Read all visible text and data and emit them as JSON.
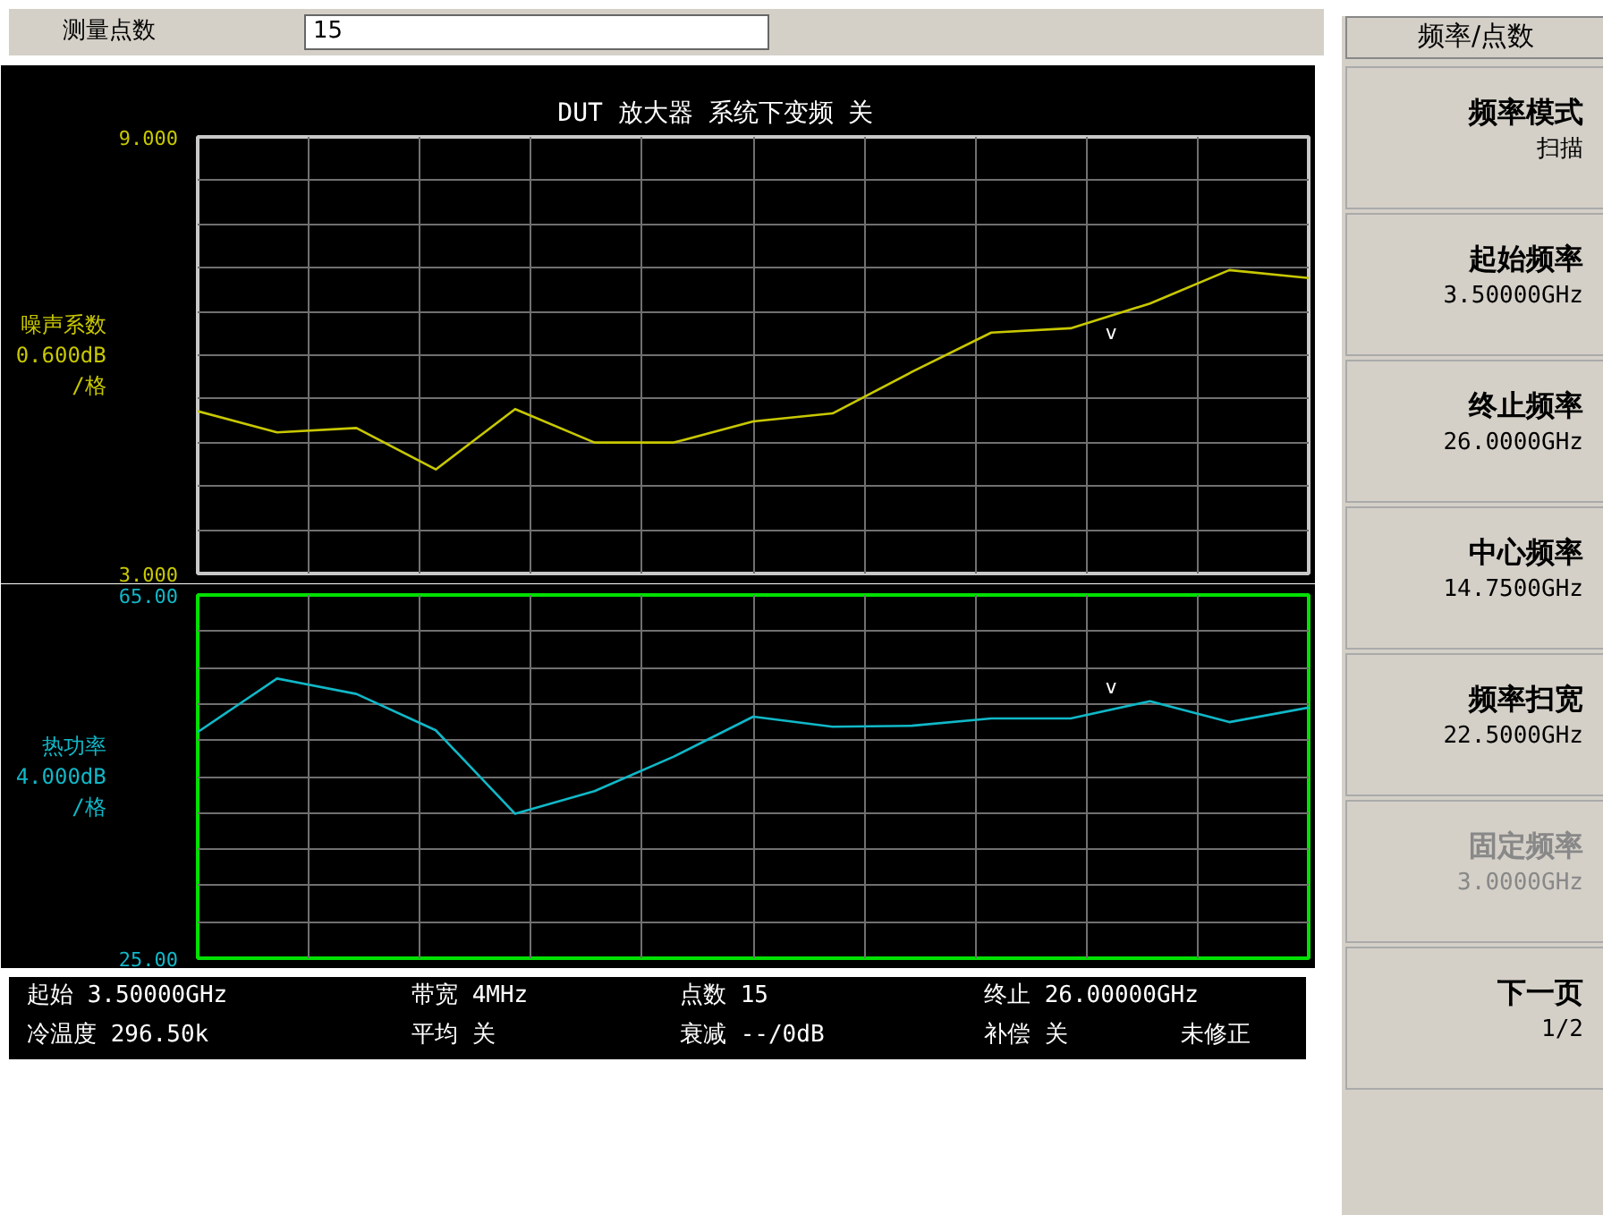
{
  "chart_data": [
    {
      "type": "line",
      "title": "DUT  放大器    系统下变频  关",
      "ylabel": "噪声系数\n0.600dB\n/格",
      "categories": [
        null,
        null,
        null,
        null,
        null,
        null,
        null,
        null,
        null,
        null,
        null,
        null,
        null,
        null,
        null
      ],
      "series": [
        {
          "color": "#c8c800",
          "values": [
            5.23,
            4.94,
            5.0,
            4.43,
            5.26,
            4.8,
            4.8,
            5.09,
            5.2,
            5.77,
            6.31,
            6.37,
            6.71,
            7.17,
            7.06
          ]
        }
      ],
      "ylim": [
        3.0,
        9.0
      ],
      "yticks": [
        {
          "value": 3.0,
          "label": "3.000"
        },
        {
          "value": 3.6,
          "label": null
        },
        {
          "value": 4.2,
          "label": null
        },
        {
          "value": 4.8,
          "label": null
        },
        {
          "value": 5.4,
          "label": null
        },
        {
          "value": 6.0,
          "label": null
        },
        {
          "value": 6.6,
          "label": null
        },
        {
          "value": 7.2,
          "label": null
        },
        {
          "value": 7.8,
          "label": null
        },
        {
          "value": 8.4,
          "label": null
        },
        {
          "value": 9.0,
          "label": "9.000"
        }
      ],
      "grid": true,
      "tick_labels": "y",
      "annotations": [
        "测量点数",
        "15",
        "v"
      ]
    },
    {
      "type": "line",
      "ylabel": "热功率\n4.000dB\n/格",
      "categories": [
        null,
        null,
        null,
        null,
        null,
        null,
        null,
        null,
        null,
        null,
        null,
        null,
        null,
        null,
        null
      ],
      "series": [
        {
          "color": "#10b8c8",
          "values": [
            49.9,
            55.8,
            54.1,
            50.1,
            40.9,
            43.4,
            47.2,
            51.6,
            50.5,
            50.6,
            51.4,
            51.4,
            53.3,
            51.0,
            52.6
          ]
        }
      ],
      "ylim": [
        25.0,
        65.0
      ],
      "yticks": [
        {
          "value": 25.0,
          "label": "25.00"
        },
        {
          "value": 29.0,
          "label": null
        },
        {
          "value": 33.0,
          "label": null
        },
        {
          "value": 37.0,
          "label": null
        },
        {
          "value": 41.0,
          "label": null
        },
        {
          "value": 45.0,
          "label": null
        },
        {
          "value": 49.0,
          "label": null
        },
        {
          "value": 53.0,
          "label": null
        },
        {
          "value": 57.0,
          "label": null
        },
        {
          "value": 61.0,
          "label": null
        },
        {
          "value": 65.0,
          "label": "65.00"
        }
      ],
      "grid": true,
      "tick_labels": "y",
      "annotations": [
        "v",
        "起始  3.50000GHz",
        "带宽  4MHz",
        "点数  15",
        "终止  26.00000GHz",
        "冷温度  296.50k",
        "平均  关",
        "衰减  --/0dB",
        "补偿  关",
        "未修正"
      ]
    },
    {
      "type": "other",
      "annotations": [
        "频率/点数",
        "频率模式",
        "扫描",
        "起始频率",
        "3.50000GHz",
        "终止频率",
        "26.0000GHz",
        "中心频率",
        "14.7500GHz",
        "频率扫宽",
        "22.5000GHz",
        "固定频率",
        "3.0000GHz",
        "下一页",
        "1/2"
      ]
    }
  ]
}
